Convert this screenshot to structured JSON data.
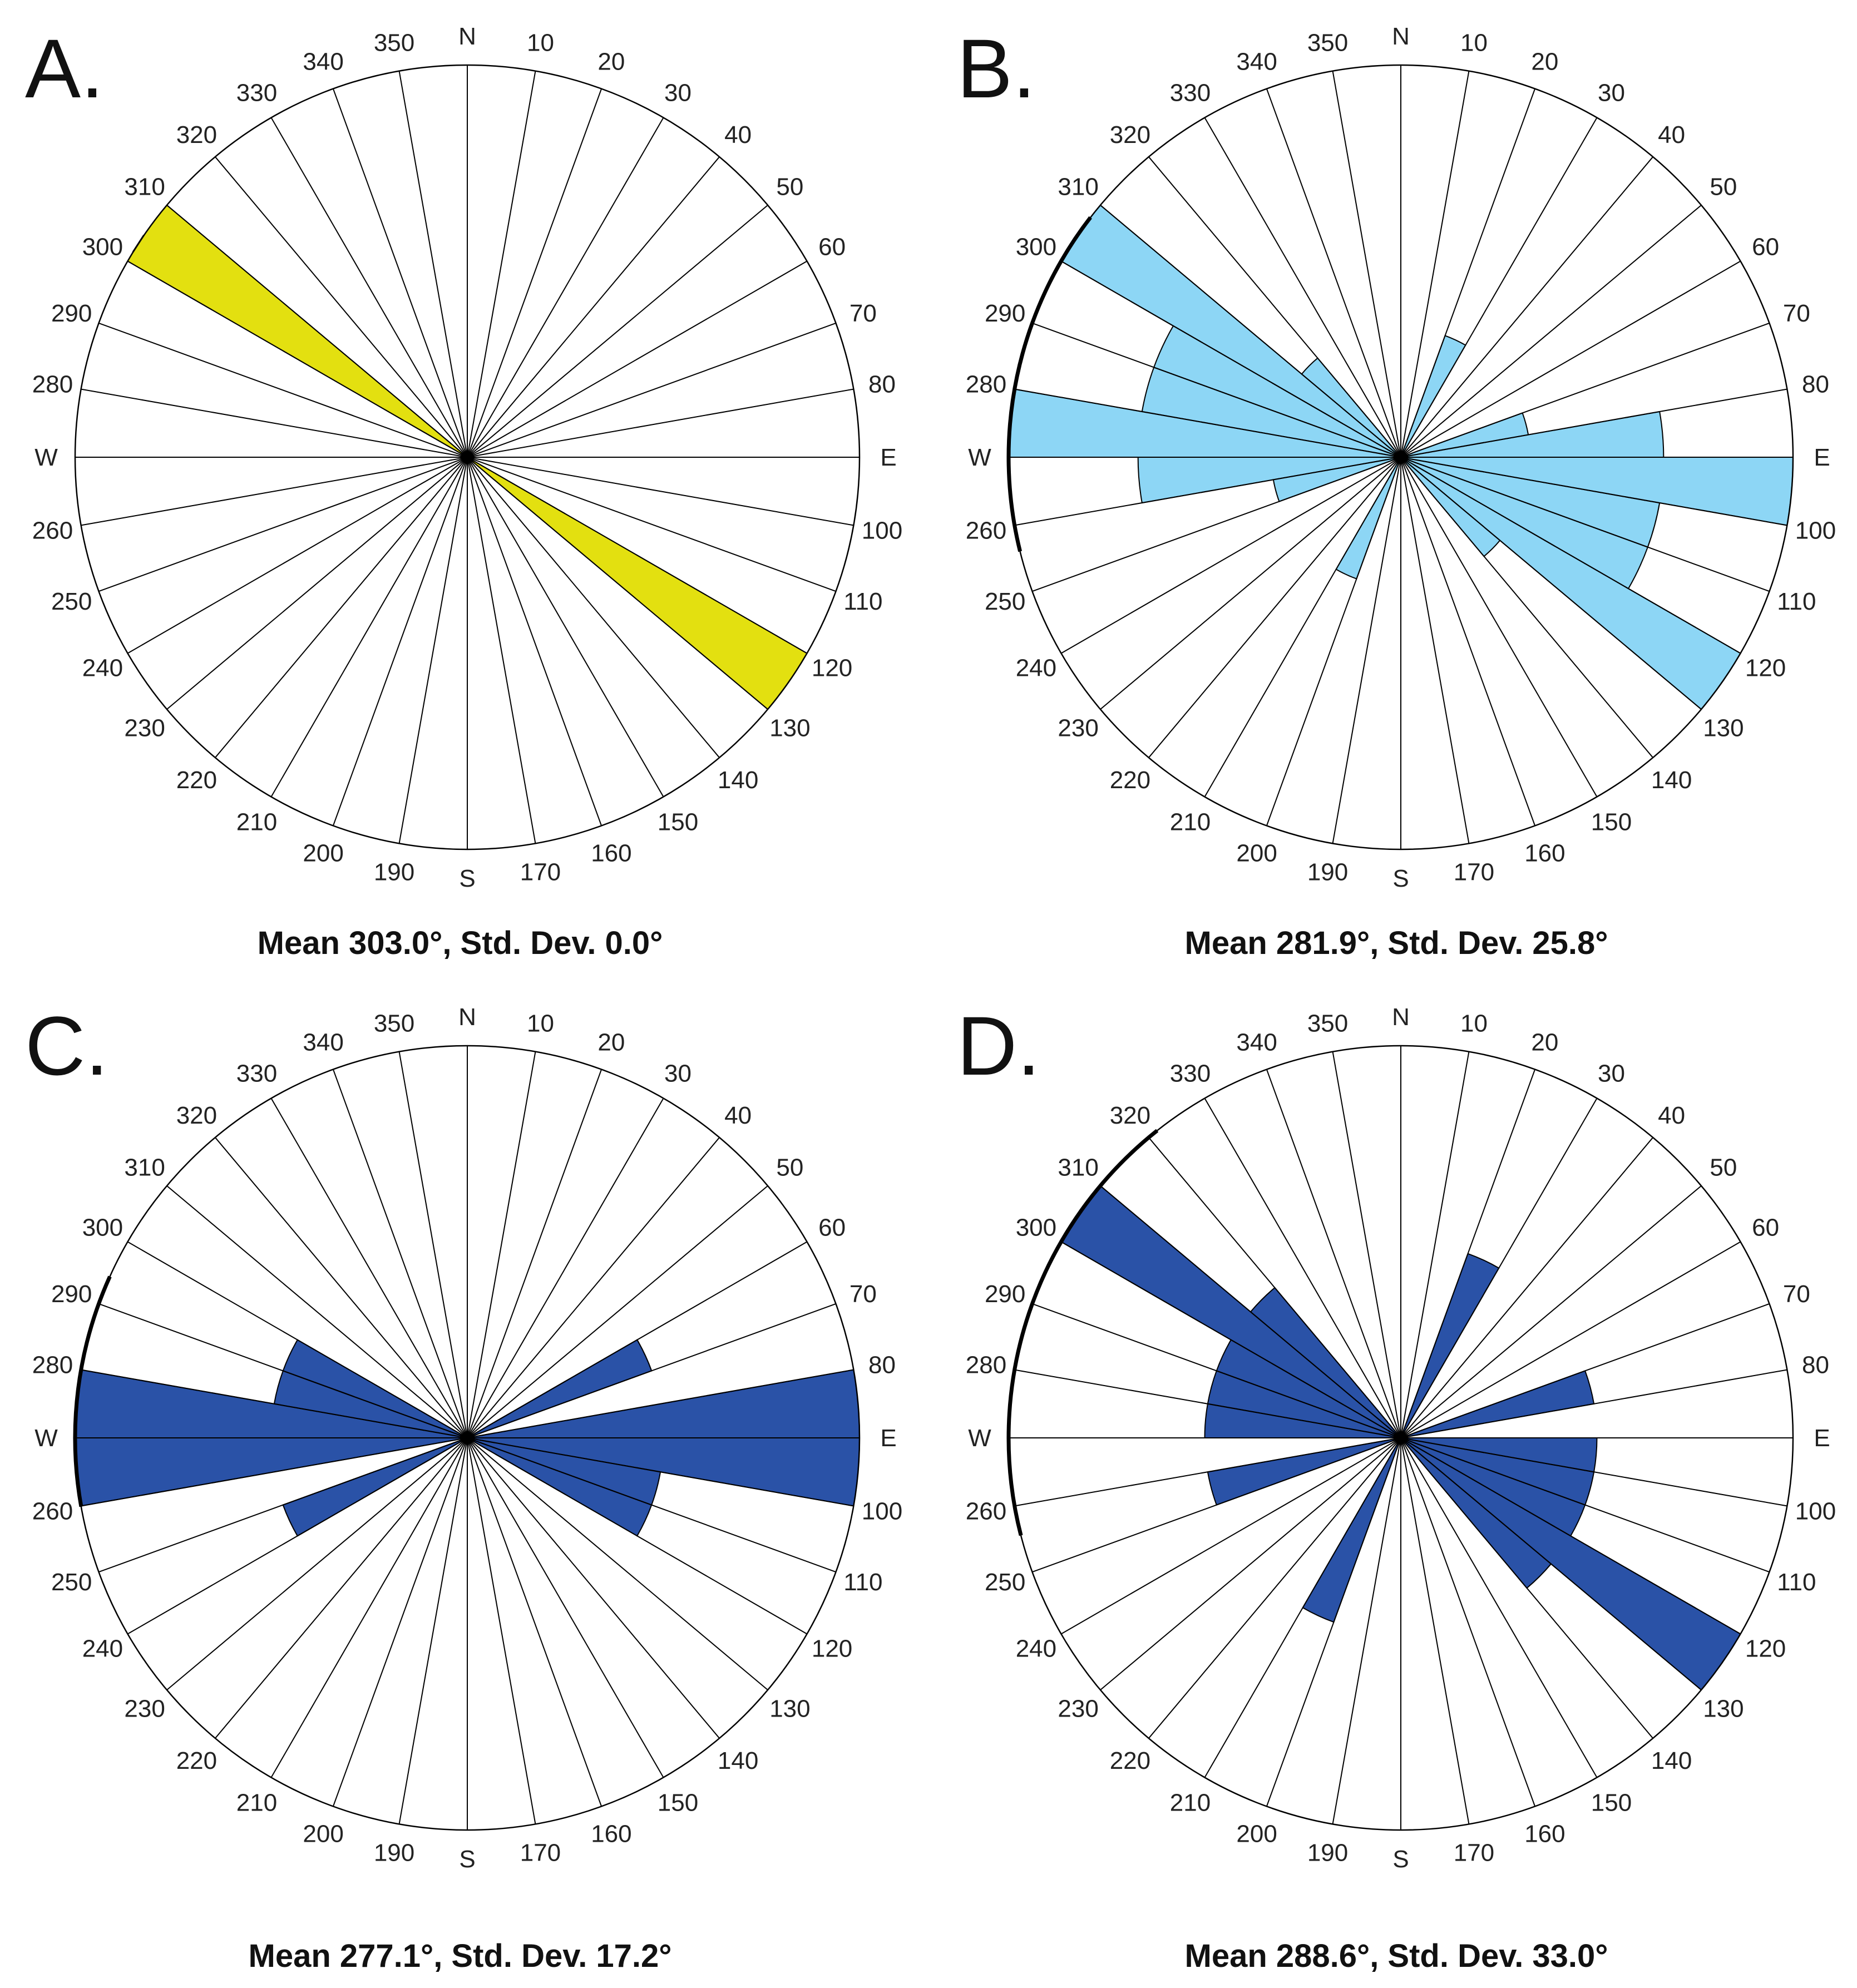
{
  "figure": {
    "description_type": "four rose diagrams (circular histograms) of orientation data"
  },
  "cardinal_labels": {
    "0": "N",
    "90": "E",
    "180": "S",
    "270": "W"
  },
  "chart_data": [
    {
      "type": "rose",
      "panel": "A.",
      "caption": "Mean 303.0°, Std. Dev. 0.0°",
      "bin_width_deg": 10,
      "bidirectional": true,
      "fill_color": "#e3e010",
      "bins": [
        {
          "from": 300,
          "to": 310,
          "value": 1.0
        }
      ],
      "mean_deg": 303.0,
      "std_dev_deg": 0.0
    },
    {
      "type": "rose",
      "panel": "B.",
      "caption": "Mean 281.9°, Std. Dev. 25.8°",
      "bin_width_deg": 10,
      "bidirectional": true,
      "fill_color": "#8dd6f5",
      "bins": [
        {
          "from": 300,
          "to": 310,
          "value": 1.0
        },
        {
          "from": 290,
          "to": 300,
          "value": 0.67
        },
        {
          "from": 280,
          "to": 290,
          "value": 0.67
        },
        {
          "from": 270,
          "to": 280,
          "value": 1.0
        },
        {
          "from": 260,
          "to": 270,
          "value": 0.67
        },
        {
          "from": 310,
          "to": 320,
          "value": 0.33
        },
        {
          "from": 250,
          "to": 260,
          "value": 0.33
        },
        {
          "from": 200,
          "to": 210,
          "value": 0.33
        }
      ],
      "mean_deg": 281.9,
      "std_dev_deg": 25.8,
      "std_arc_deg": [
        256.1,
        307.7
      ]
    },
    {
      "type": "rose",
      "panel": "C.",
      "caption": "Mean 277.1°, Std. Dev. 17.2°",
      "bin_width_deg": 10,
      "bidirectional": true,
      "fill_color": "#2a52a7",
      "bins": [
        {
          "from": 270,
          "to": 280,
          "value": 1.0
        },
        {
          "from": 260,
          "to": 270,
          "value": 1.0
        },
        {
          "from": 290,
          "to": 300,
          "value": 0.5
        },
        {
          "from": 280,
          "to": 290,
          "value": 0.5
        },
        {
          "from": 240,
          "to": 250,
          "value": 0.5
        },
        {
          "from": 60,
          "to": 70,
          "value": 0.5
        }
      ],
      "mean_deg": 277.1,
      "std_dev_deg": 17.2,
      "std_arc_deg": [
        259.9,
        294.3
      ]
    },
    {
      "type": "rose",
      "panel": "D.",
      "caption": "Mean 288.6°, Std. Dev. 33.0°",
      "bin_width_deg": 10,
      "bidirectional": true,
      "fill_color": "#2a52a7",
      "bins": [
        {
          "from": 300,
          "to": 310,
          "value": 1.0
        },
        {
          "from": 310,
          "to": 320,
          "value": 0.5
        },
        {
          "from": 290,
          "to": 300,
          "value": 0.5
        },
        {
          "from": 280,
          "to": 290,
          "value": 0.5
        },
        {
          "from": 270,
          "to": 280,
          "value": 0.5
        },
        {
          "from": 250,
          "to": 260,
          "value": 0.5
        },
        {
          "from": 200,
          "to": 210,
          "value": 0.5
        }
      ],
      "mean_deg": 288.6,
      "std_dev_deg": 33.0,
      "std_arc_deg": [
        255.6,
        321.6
      ]
    }
  ]
}
